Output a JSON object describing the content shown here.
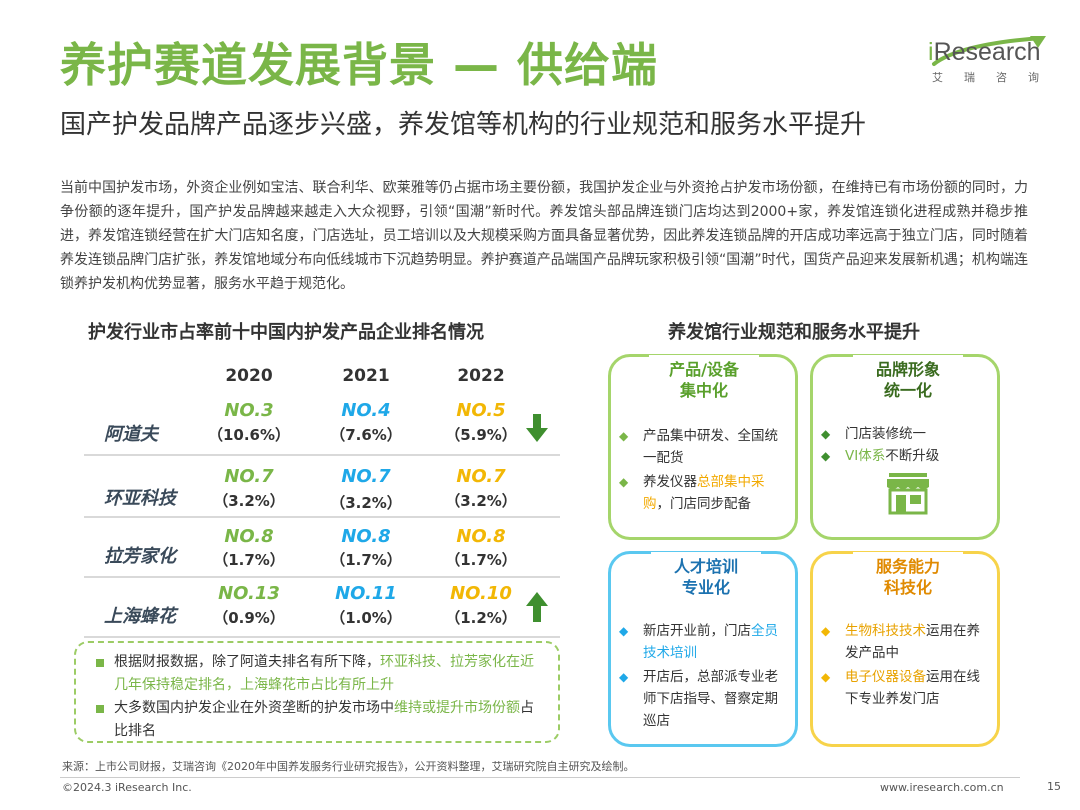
{
  "header": {
    "title": "养护赛道发展背景 — 供给端",
    "subtitle": "国产护发品牌产品逐步兴盛，养发馆等机构的行业规范和服务水平提升"
  },
  "logo": {
    "brand_i": "i",
    "brand_rest": "Research",
    "sub": "艾瑞咨询"
  },
  "intro": "当前中国护发市场，外资企业例如宝洁、联合利华、欧莱雅等仍占据市场主要份额，我国护发企业与外资抢占护发市场份额，在维持已有市场份额的同时，力争份额的逐年提升，国产护发品牌越来越走入大众视野，引领“国潮”新时代。养发馆头部品牌连锁门店均达到2000+家，养发馆连锁化进程成熟并稳步推进，养发馆连锁经营在扩大门店知名度，门店选址，员工培训以及大规模采购方面具备显著优势，因此养发连锁品牌的开店成功率远高于独立门店，同时随着养发连锁品牌门店扩张，养发馆地域分布向低线城市下沉趋势明显。养护赛道产品端国产品牌玩家积极引领“国潮”时代，国货产品迎来发展新机遇；机构端连锁养护发机构优势显著，服务水平趋于规范化。",
  "left_section": {
    "title": "护发行业市占率前十中国内护发产品企业排名情况",
    "years": [
      "2020",
      "2021",
      "2022"
    ],
    "rows": [
      {
        "company": "阿道夫",
        "ranks": [
          "NO.3",
          "NO.4",
          "NO.5"
        ],
        "shares": [
          "（10.6%）",
          "（7.6%）",
          "（5.9%）"
        ],
        "trend": "down"
      },
      {
        "company": "环亚科技",
        "ranks": [
          "NO.7",
          "NO.7",
          "NO.7"
        ],
        "shares": [
          "（3.2%）",
          "（3.2%）",
          "（3.2%）"
        ],
        "trend": "flat"
      },
      {
        "company": "拉芳家化",
        "ranks": [
          "NO.8",
          "NO.8",
          "NO.8"
        ],
        "shares": [
          "（1.7%）",
          "（1.7%）",
          "（1.7%）"
        ],
        "trend": "flat"
      },
      {
        "company": "上海蜂花",
        "ranks": [
          "NO.13",
          "NO.11",
          "NO.10"
        ],
        "shares": [
          "（0.9%）",
          "（1.0%）",
          "（1.2%）"
        ],
        "trend": "up"
      }
    ],
    "notes": [
      {
        "a": "根据财报数据，除了阿道夫排名有所下降，",
        "b": "环亚科技、拉芳家化在近几年保持稳定排名，上海蜂花市占比有所上升",
        "c": ""
      },
      {
        "a": "大多数国内护发企业在外资垄断的护发市场中",
        "b": "维持或提升市场份额",
        "c": "占比排名"
      }
    ]
  },
  "right_section": {
    "title": "养发馆行业规范和服务水平提升",
    "cards": [
      {
        "title": "产品/设备\n集中化",
        "items": [
          [
            {
              "t": "产品集中研发、全国统一配货",
              "h": false
            }
          ],
          [
            {
              "t": "养发仪器",
              "h": false
            },
            {
              "t": "总部集中采购",
              "h": true
            },
            {
              "t": "，门店同步配备",
              "h": false
            }
          ]
        ]
      },
      {
        "title": "品牌形象\n统一化",
        "items": [
          [
            {
              "t": "门店装修统一",
              "h": false
            }
          ],
          [
            {
              "t": "VI体系",
              "h": true
            },
            {
              "t": "不断升级",
              "h": false
            }
          ]
        ]
      },
      {
        "title": "人才培训\n专业化",
        "items": [
          [
            {
              "t": "新店开业前，门店",
              "h": false
            },
            {
              "t": "全员技术培训",
              "h": true
            }
          ],
          [
            {
              "t": "开店后，总部派专业老师下店指导、督察定期巡店",
              "h": false
            }
          ]
        ]
      },
      {
        "title": "服务能力\n科技化",
        "items": [
          [
            {
              "t": "生物科技技术",
              "h": true
            },
            {
              "t": "运用在养发产品中",
              "h": false
            }
          ],
          [
            {
              "t": "电子仪器设备",
              "h": true
            },
            {
              "t": "运用在线下专业养发门店",
              "h": false
            }
          ]
        ]
      }
    ]
  },
  "footer": {
    "source": "来源：上市公司财报，艾瑞咨询《2020年中国养发服务行业研究报告》，公开资料整理，艾瑞研究院自主研究及绘制。",
    "copyright": "©2024.3 iResearch Inc.",
    "url": "www.iresearch.com.cn",
    "page": "15"
  },
  "colors": {
    "green": "#7ab648",
    "blue": "#1fa8e8",
    "gold": "#f2b705"
  },
  "icons": [
    "down-arrow-icon",
    "up-arrow-icon",
    "storefront-icon",
    "diamond-bullet-icon"
  ]
}
